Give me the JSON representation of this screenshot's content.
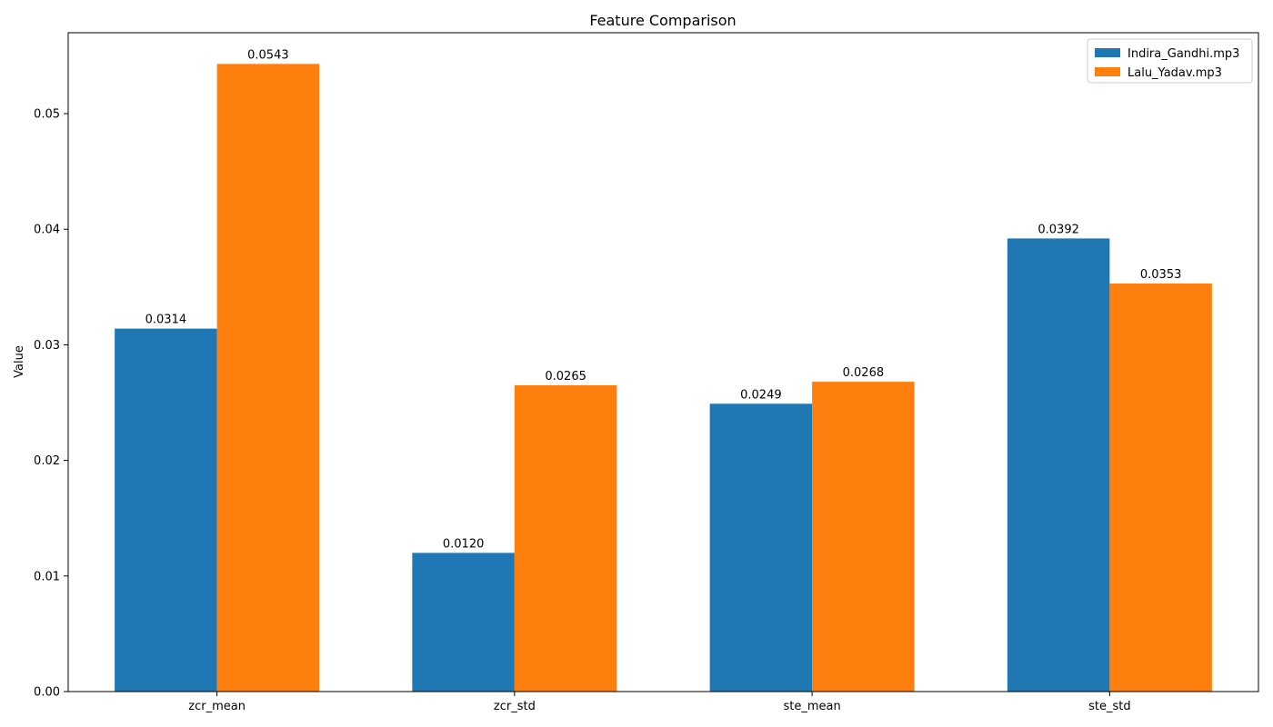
{
  "chart_data": {
    "type": "bar",
    "title": "Feature Comparison",
    "xlabel": "",
    "ylabel": "Value",
    "categories": [
      "zcr_mean",
      "zcr_std",
      "ste_mean",
      "ste_std"
    ],
    "series": [
      {
        "name": "Indira_Gandhi.mp3",
        "color": "#1f77b4",
        "values": [
          0.0314,
          0.012,
          0.0249,
          0.0392
        ],
        "labels": [
          "0.0314",
          "0.0120",
          "0.0249",
          "0.0392"
        ]
      },
      {
        "name": "Lalu_Yadav.mp3",
        "color": "#ff7f0e",
        "values": [
          0.0543,
          0.0265,
          0.0268,
          0.0353
        ],
        "labels": [
          "0.0543",
          "0.0265",
          "0.0268",
          "0.0353"
        ]
      }
    ],
    "ylim": [
      0,
      0.057
    ],
    "yticks": [
      0.0,
      0.01,
      0.02,
      0.03,
      0.04,
      0.05
    ],
    "ytick_labels": [
      "0.00",
      "0.01",
      "0.02",
      "0.03",
      "0.04",
      "0.05"
    ],
    "grid": false,
    "legend_position": "top-right"
  }
}
